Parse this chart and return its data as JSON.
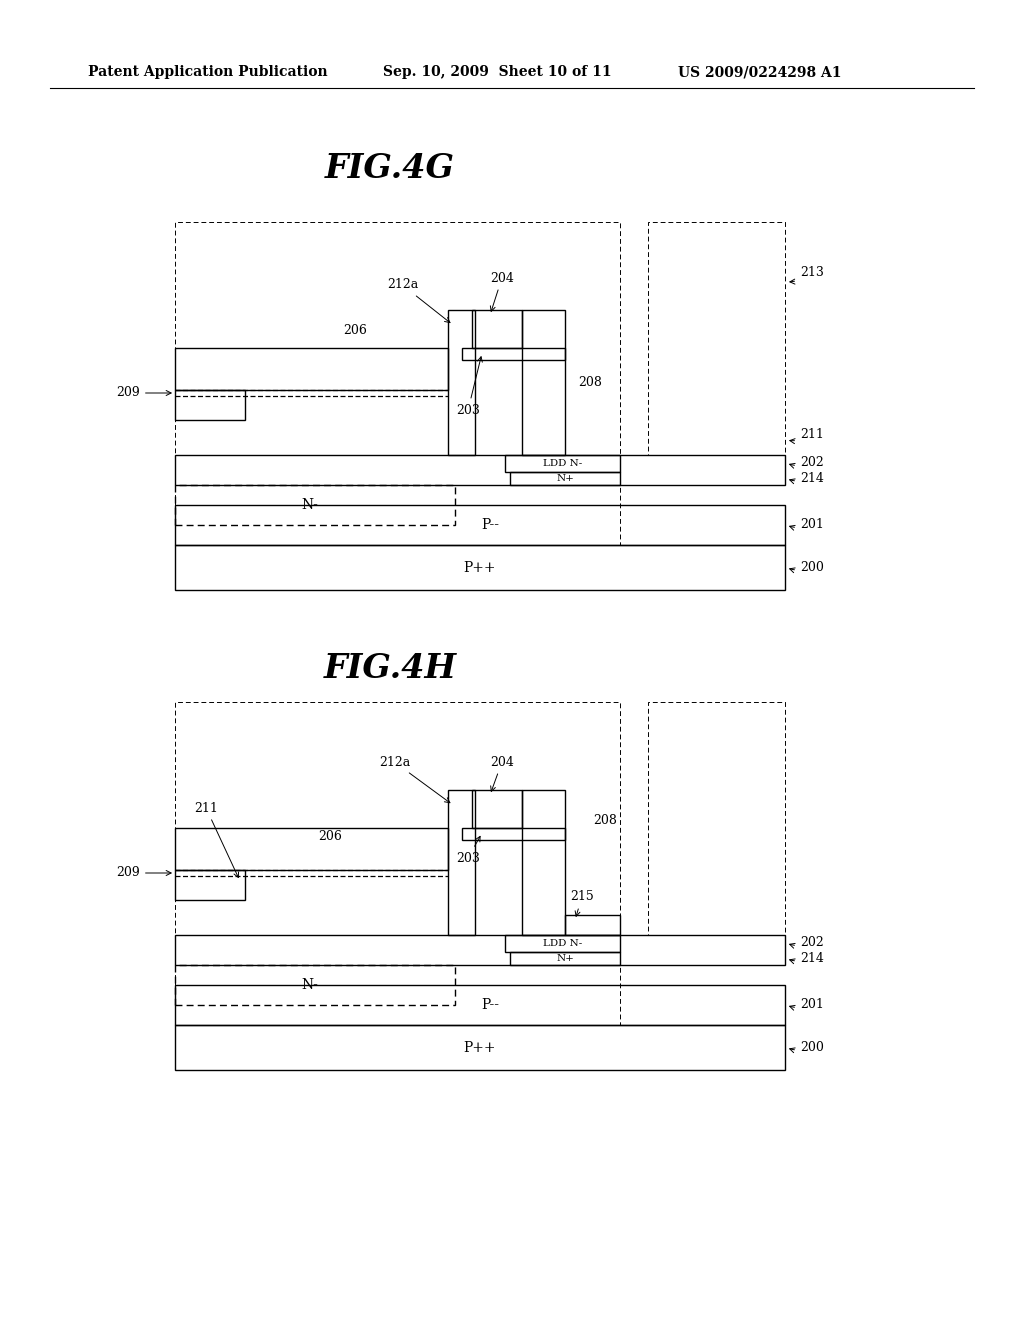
{
  "bg_color": "#ffffff",
  "header_left": "Patent Application Publication",
  "header_mid": "Sep. 10, 2009  Sheet 10 of 11",
  "header_right": "US 2009/0224298 A1",
  "fig4g_title": "FIG.4G",
  "fig4h_title": "FIG.4H",
  "fig_title_fontsize": 24,
  "header_fontsize": 10,
  "label_fontsize": 9,
  "layer_fontsize": 10,
  "lw_main": 1.0,
  "lw_dashed": 0.7
}
